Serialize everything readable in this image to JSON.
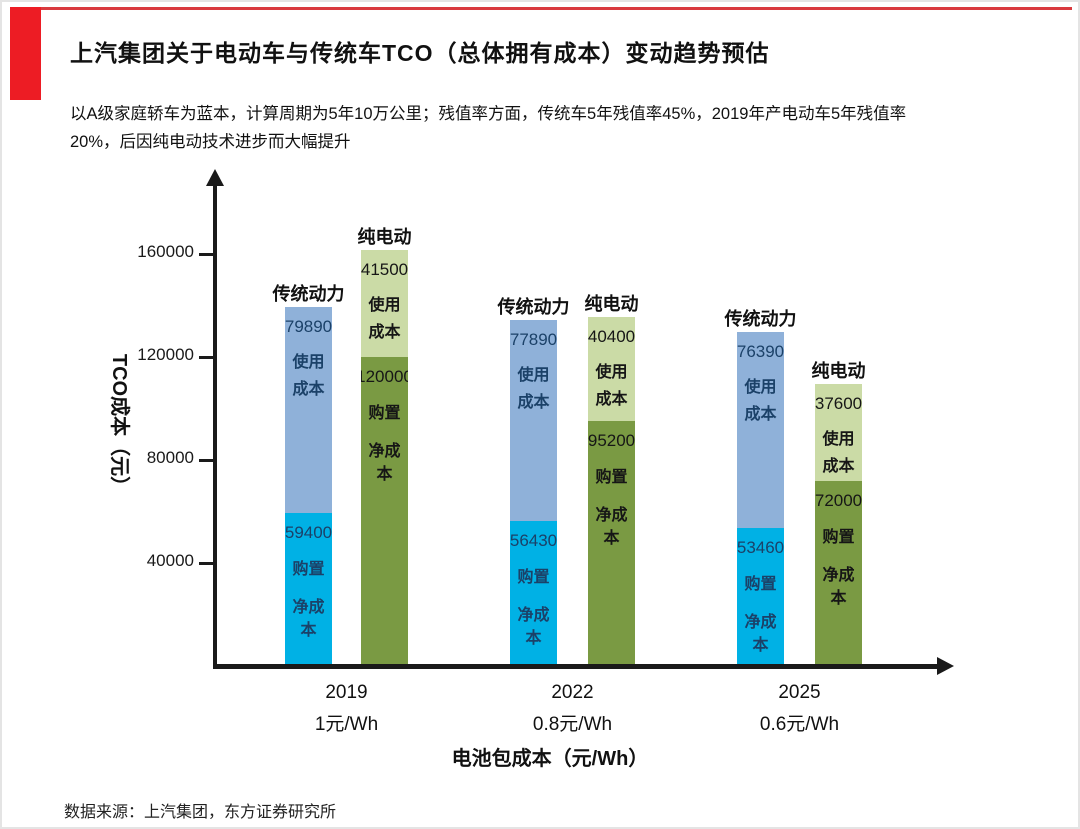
{
  "page": {
    "title": "上汽集团关于电动车与传统车TCO（总体拥有成本）变动趋势预估",
    "subtitle_lines": [
      "以A级家庭轿车为蓝本，计算周期为5年10万公里；残值率方面，传统车5年残值率45%，2019年产电动车5年残值率",
      "20%，后因纯电动技术进步而大幅提升"
    ],
    "source": "数据来源：上汽集团，东方证券研究所",
    "accent_color": "#ed1c24"
  },
  "chart_data": {
    "type": "bar",
    "subtype": "grouped-stacked",
    "title": "上汽集团关于电动车与传统车TCO（总体拥有成本）变动趋势预估",
    "xlabel": "电池包成本（元/Wh）",
    "ylabel": "TCO成本（元）",
    "yticks": [
      40000,
      80000,
      120000,
      160000
    ],
    "ylim": [
      0,
      190000
    ],
    "grid": false,
    "legend_position": "none",
    "colors": {
      "traditional": [
        "#8fb1d9",
        "#00b1e5"
      ],
      "ev": [
        "#cbdba6",
        "#7a9a43"
      ],
      "traditional_text": "#1b4168",
      "ev_text": "#161616"
    },
    "groups": [
      {
        "year": "2019",
        "battery_cost": "1元/Wh",
        "bars": [
          {
            "name": "传统动力",
            "type": "traditional",
            "segments": [
              {
                "label": "使用成本",
                "label_lines": [
                  "使用",
                  "成本"
                ],
                "value": 79890
              },
              {
                "label": "购置净成本",
                "label_lines": [
                  "购置",
                  "净成本"
                ],
                "value": 59400
              }
            ]
          },
          {
            "name": "纯电动",
            "type": "ev",
            "segments": [
              {
                "label": "使用成本",
                "label_lines": [
                  "使用",
                  "成本"
                ],
                "value": 41500
              },
              {
                "label": "购置净成本",
                "label_lines": [
                  "购置",
                  "净成本"
                ],
                "value": 120000
              }
            ]
          }
        ]
      },
      {
        "year": "2022",
        "battery_cost": "0.8元/Wh",
        "bars": [
          {
            "name": "传统动力",
            "type": "traditional",
            "segments": [
              {
                "label": "使用成本",
                "label_lines": [
                  "使用",
                  "成本"
                ],
                "value": 77890
              },
              {
                "label": "购置净成本",
                "label_lines": [
                  "购置",
                  "净成本"
                ],
                "value": 56430
              }
            ]
          },
          {
            "name": "纯电动",
            "type": "ev",
            "segments": [
              {
                "label": "使用成本",
                "label_lines": [
                  "使用",
                  "成本"
                ],
                "value": 40400
              },
              {
                "label": "购置净成本",
                "label_lines": [
                  "购置",
                  "净成本"
                ],
                "value": 95200
              }
            ]
          }
        ]
      },
      {
        "year": "2025",
        "battery_cost": "0.6元/Wh",
        "bars": [
          {
            "name": "传统动力",
            "type": "traditional",
            "segments": [
              {
                "label": "使用成本",
                "label_lines": [
                  "使用",
                  "成本"
                ],
                "value": 76390
              },
              {
                "label": "购置净成本",
                "label_lines": [
                  "购置",
                  "净成本"
                ],
                "value": 53460
              }
            ]
          },
          {
            "name": "纯电动",
            "type": "ev",
            "segments": [
              {
                "label": "使用成本",
                "label_lines": [
                  "使用",
                  "成本"
                ],
                "value": 37600
              },
              {
                "label": "购置净成本",
                "label_lines": [
                  "购置",
                  "净成本"
                ],
                "value": 72000
              }
            ]
          }
        ]
      }
    ]
  }
}
